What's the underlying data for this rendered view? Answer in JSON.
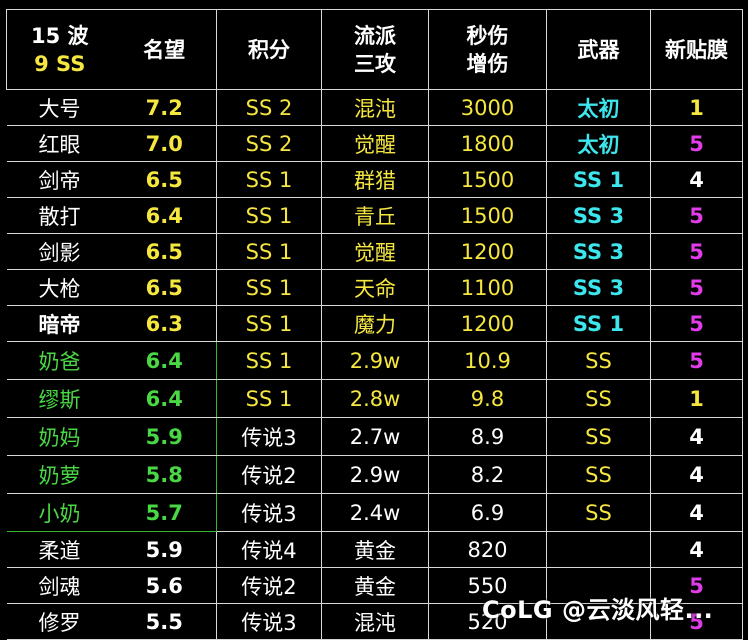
{
  "header": {
    "col1_line1": "15 波",
    "col1_line2": "9 SS",
    "col2": "名望",
    "col3": "积分",
    "col4_line1": "流派",
    "col4_line2": "三攻",
    "col5_line1": "秒伤",
    "col5_line2": "增伤",
    "col6": "武器",
    "col7": "新贴膜"
  },
  "rows": [
    {
      "name": "大号",
      "fame": "7.2",
      "score": "SS 2",
      "sect": "混沌",
      "dmg": "3000",
      "weapon": "太初",
      "film": "1"
    },
    {
      "name": "红眼",
      "fame": "7.0",
      "score": "SS 2",
      "sect": "觉醒",
      "dmg": "1800",
      "weapon": "太初",
      "film": "5"
    },
    {
      "name": "剑帝",
      "fame": "6.5",
      "score": "SS 1",
      "sect": "群猎",
      "dmg": "1500",
      "weapon": "SS 1",
      "film": "4"
    },
    {
      "name": "散打",
      "fame": "6.4",
      "score": "SS 1",
      "sect": "青丘",
      "dmg": "1500",
      "weapon": "SS 3",
      "film": "5"
    },
    {
      "name": "剑影",
      "fame": "6.5",
      "score": "SS 1",
      "sect": "觉醒",
      "dmg": "1200",
      "weapon": "SS 3",
      "film": "5"
    },
    {
      "name": "大枪",
      "fame": "6.5",
      "score": "SS 1",
      "sect": "天命",
      "dmg": "1100",
      "weapon": "SS 3",
      "film": "5"
    },
    {
      "name": "暗帝",
      "fame": "6.3",
      "score": "SS 1",
      "sect": "魔力",
      "dmg": "1200",
      "weapon": "SS 1",
      "film": "5"
    },
    {
      "name": "奶爸",
      "fame": "6.4",
      "score": "SS 1",
      "sect": "2.9w",
      "dmg": "10.9",
      "weapon": "SS",
      "film": "5"
    },
    {
      "name": "缪斯",
      "fame": "6.4",
      "score": "SS 1",
      "sect": "2.8w",
      "dmg": "9.8",
      "weapon": "SS",
      "film": "1"
    },
    {
      "name": "奶妈",
      "fame": "5.9",
      "score": "传说3",
      "sect": "2.7w",
      "dmg": "8.9",
      "weapon": "SS",
      "film": "4"
    },
    {
      "name": "奶萝",
      "fame": "5.8",
      "score": "传说2",
      "sect": "2.9w",
      "dmg": "8.2",
      "weapon": "SS",
      "film": "4"
    },
    {
      "name": "小奶",
      "fame": "5.7",
      "score": "传说3",
      "sect": "2.4w",
      "dmg": "6.9",
      "weapon": "SS",
      "film": "4"
    },
    {
      "name": "柔道",
      "fame": "5.9",
      "score": "传说4",
      "sect": "黄金",
      "dmg": "820",
      "weapon": "",
      "film": "4"
    },
    {
      "name": "剑魂",
      "fame": "5.6",
      "score": "传说2",
      "sect": "黄金",
      "dmg": "550",
      "weapon": "",
      "film": "5"
    },
    {
      "name": "修罗",
      "fame": "5.5",
      "score": "传说3",
      "sect": "混沌",
      "dmg": "520",
      "weapon": "",
      "film": "5"
    }
  ],
  "colors": {
    "white": "#ffffff",
    "yellow": "#f5e640",
    "cyan": "#3de6ec",
    "magenta": "#e03ce8",
    "green": "#49d843"
  },
  "watermark": "CoLG @云淡风轻..."
}
